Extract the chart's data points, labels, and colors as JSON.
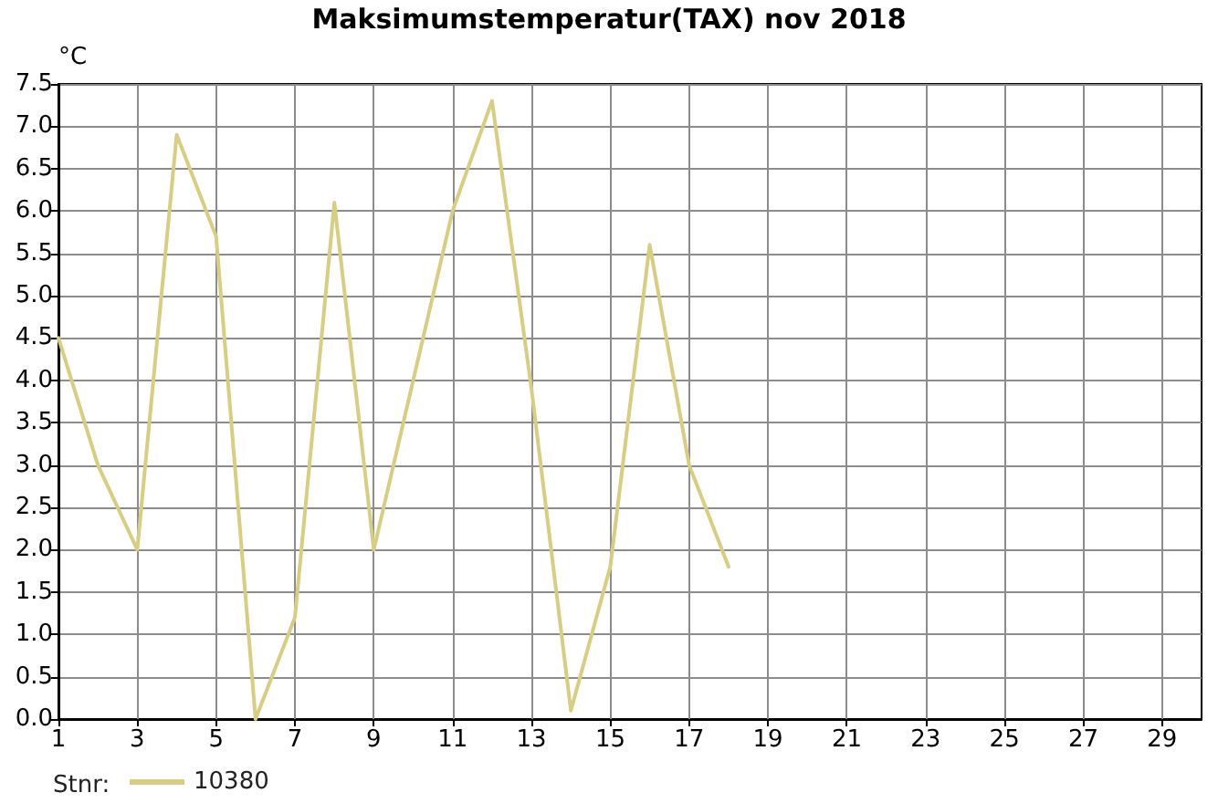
{
  "chart_data": {
    "type": "line",
    "title": "Maksimumstemperatur(TAX) nov 2018",
    "ylabel": "°C",
    "legend_title": "Stnr:",
    "x": [
      1,
      2,
      3,
      4,
      5,
      6,
      7,
      8,
      9,
      10,
      11,
      12,
      13,
      14,
      15,
      16,
      17,
      18
    ],
    "series": [
      {
        "name": "10380",
        "color": "#d8cd84",
        "values": [
          4.5,
          3.0,
          2.0,
          6.9,
          5.7,
          0.0,
          1.2,
          6.1,
          2.0,
          4.0,
          6.0,
          7.3,
          3.9,
          0.1,
          1.8,
          5.6,
          3.0,
          1.8
        ]
      }
    ],
    "xlim": [
      1,
      30
    ],
    "xticks": [
      1,
      3,
      5,
      7,
      9,
      11,
      13,
      15,
      17,
      19,
      21,
      23,
      25,
      27,
      29
    ],
    "ylim": [
      0,
      7.5
    ],
    "yticks": [
      {
        "value": 0,
        "label": "0.0"
      },
      0.5,
      {
        "value": 1,
        "label": "1.0"
      },
      1.5,
      {
        "value": 2,
        "label": "2.0"
      },
      2.5,
      {
        "value": 3,
        "label": "3.0"
      },
      3.5,
      {
        "value": 4,
        "label": "4.0"
      },
      4.5,
      {
        "value": 5,
        "label": "5.0"
      },
      5.5,
      {
        "value": 6,
        "label": "6.0"
      },
      6.5,
      {
        "value": 7,
        "label": "7.0"
      },
      7.5
    ],
    "grid": true,
    "legend": "bottom left",
    "line_style": "solid"
  }
}
